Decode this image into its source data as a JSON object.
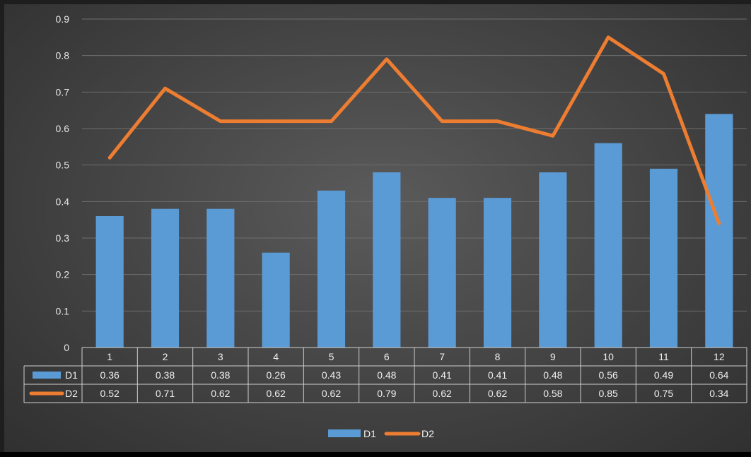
{
  "chart_data": {
    "type": "bar",
    "categories": [
      "1",
      "2",
      "3",
      "4",
      "5",
      "6",
      "7",
      "8",
      "9",
      "10",
      "11",
      "12"
    ],
    "series": [
      {
        "name": "D1",
        "kind": "bar",
        "color": "#5b9bd5",
        "values": [
          0.36,
          0.38,
          0.38,
          0.26,
          0.43,
          0.48,
          0.41,
          0.41,
          0.48,
          0.56,
          0.49,
          0.64
        ],
        "labels": [
          "0.36",
          "0.38",
          "0.38",
          "0.26",
          "0.43",
          "0.48",
          "0.41",
          "0.41",
          "0.48",
          "0.56",
          "0.49",
          "0.64"
        ]
      },
      {
        "name": "D2",
        "kind": "line",
        "color": "#ed7d31",
        "values": [
          0.52,
          0.71,
          0.62,
          0.62,
          0.62,
          0.79,
          0.62,
          0.62,
          0.58,
          0.85,
          0.75,
          0.34
        ],
        "labels": [
          "0.52",
          "0.71",
          "0.62",
          "0.62",
          "0.62",
          "0.79",
          "0.62",
          "0.62",
          "0.58",
          "0.85",
          "0.75",
          "0.34"
        ]
      }
    ],
    "ylim": [
      0,
      0.9
    ],
    "yticks": [
      "0",
      "0.1",
      "0.2",
      "0.3",
      "0.4",
      "0.5",
      "0.6",
      "0.7",
      "0.8",
      "0.9"
    ],
    "title": "",
    "xlabel": "",
    "ylabel": "",
    "grid": true,
    "data_table": true,
    "legend_position": "bottom"
  }
}
